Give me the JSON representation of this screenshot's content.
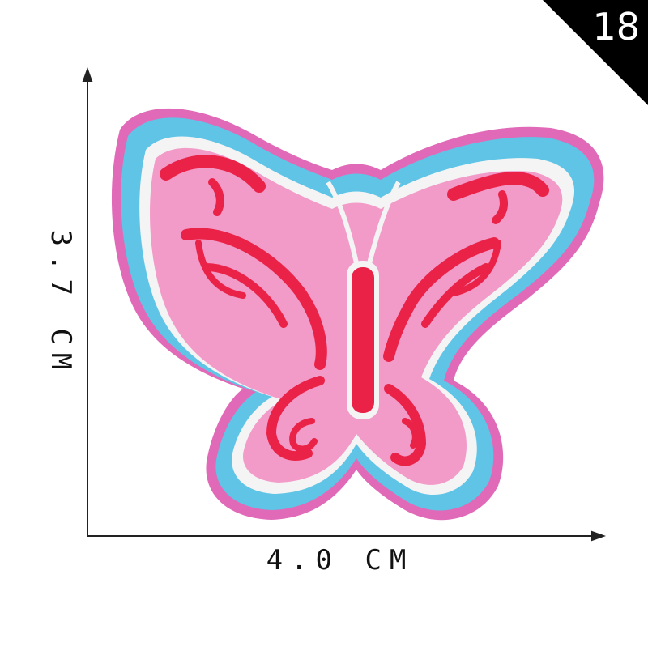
{
  "badge": {
    "number": "18",
    "background": "#000000"
  },
  "dimensions": {
    "width_label": "4.0 CM",
    "height_label": "3.7 CM"
  },
  "patch": {
    "subject": "butterfly",
    "colors": {
      "outer_edge": "#e06ab8",
      "blue_border": "#5fc4e6",
      "white_line": "#f4f4f4",
      "wing_pink": "#f29ac8",
      "accent_red": "#ea2247"
    }
  }
}
